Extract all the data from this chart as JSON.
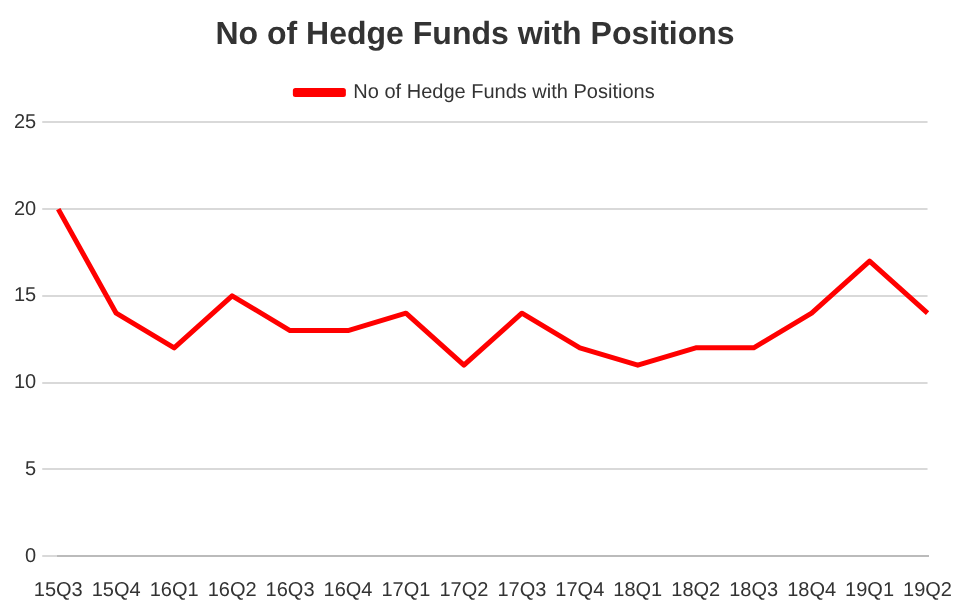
{
  "chart_data": {
    "type": "line",
    "title": "No of Hedge Funds with Positions",
    "categories": [
      "15Q3",
      "15Q4",
      "16Q1",
      "16Q2",
      "16Q3",
      "16Q4",
      "17Q1",
      "17Q2",
      "17Q3",
      "17Q4",
      "18Q1",
      "18Q2",
      "18Q3",
      "18Q4",
      "19Q1",
      "19Q2"
    ],
    "series": [
      {
        "name": "No of Hedge Funds with Positions",
        "color": "#ff0000",
        "values": [
          20,
          14,
          12,
          15,
          13,
          13,
          14,
          11,
          14,
          12,
          11,
          12,
          12,
          14,
          17,
          14
        ]
      }
    ],
    "ylim": [
      0,
      25
    ],
    "yticks": [
      0,
      5,
      10,
      15,
      20,
      25
    ],
    "grid": "y",
    "legend": "top",
    "marker": "none",
    "line_style": "solid"
  }
}
